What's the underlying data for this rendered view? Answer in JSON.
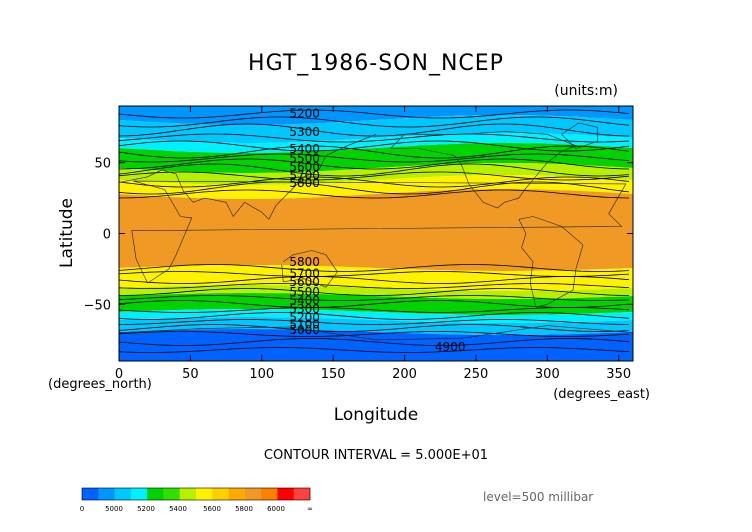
{
  "chart_data": {
    "type": "contour",
    "title": "HGT_1986-SON_NCEP",
    "units": "(units:m)",
    "xlabel": "Longitude",
    "ylabel": "Latitude",
    "x_unit_label": "(degrees_east)",
    "y_unit_label": "(degrees_north)",
    "xlim": [
      0,
      360
    ],
    "ylim": [
      -90,
      90
    ],
    "x_ticks": [
      0,
      50,
      100,
      150,
      200,
      250,
      300,
      350
    ],
    "y_ticks": [
      -50,
      0,
      50
    ],
    "x_tick_labels": [
      "0",
      "50",
      "100",
      "150",
      "200",
      "250",
      "300",
      "350"
    ],
    "y_tick_labels": [
      "−50",
      "0",
      "50"
    ],
    "contour_interval_text": "CONTOUR INTERVAL = 5.000E+01",
    "level_text": "level=500 millibar",
    "contour_labels": [
      {
        "text": "5200",
        "lon": 130,
        "lat": 82
      },
      {
        "text": "5300",
        "lon": 130,
        "lat": 69
      },
      {
        "text": "5400",
        "lon": 130,
        "lat": 57
      },
      {
        "text": "5500",
        "lon": 130,
        "lat": 50
      },
      {
        "text": "5600",
        "lon": 130,
        "lat": 44
      },
      {
        "text": "5700",
        "lon": 130,
        "lat": 38
      },
      {
        "text": "5800",
        "lon": 130,
        "lat": 33
      },
      {
        "text": "5800",
        "lon": 130,
        "lat": -23
      },
      {
        "text": "5700",
        "lon": 130,
        "lat": -31
      },
      {
        "text": "5600",
        "lon": 130,
        "lat": -37
      },
      {
        "text": "5500",
        "lon": 130,
        "lat": -44
      },
      {
        "text": "5400",
        "lon": 130,
        "lat": -50
      },
      {
        "text": "5300",
        "lon": 130,
        "lat": -56
      },
      {
        "text": "5200",
        "lon": 130,
        "lat": -62
      },
      {
        "text": "5100",
        "lon": 130,
        "lat": -67
      },
      {
        "text": "5000",
        "lon": 130,
        "lat": -71
      },
      {
        "text": "4900",
        "lon": 232,
        "lat": -83
      }
    ],
    "colorbar": {
      "tick_labels": [
        "0",
        "5000",
        "5200",
        "5400",
        "5600",
        "5800",
        "6000",
        "∞"
      ],
      "colors": [
        "#0062ff",
        "#0096ff",
        "#00c8ff",
        "#00f0ff",
        "#00d300",
        "#2fe000",
        "#b8f000",
        "#fff200",
        "#ffd000",
        "#ffaa00",
        "#f09a25",
        "#ff8000",
        "#ff0000",
        "#ff4040"
      ]
    }
  }
}
